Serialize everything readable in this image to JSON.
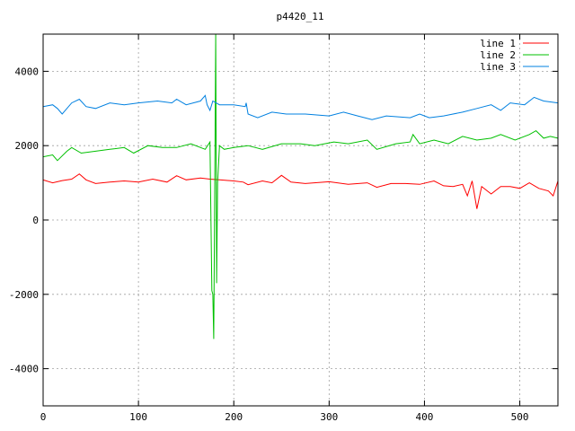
{
  "chart_data": {
    "type": "line",
    "title": "p4420_11",
    "xlabel": "",
    "ylabel": "",
    "xlim": [
      0,
      540
    ],
    "ylim": [
      -5000,
      5000
    ],
    "x_ticks": [
      0,
      100,
      200,
      300,
      400,
      500
    ],
    "y_ticks": [
      -4000,
      -2000,
      0,
      2000,
      4000
    ],
    "grid": true,
    "legend_position": "top-right",
    "series": [
      {
        "name": "line 1",
        "color": "#ff0000",
        "points": [
          [
            0,
            1080
          ],
          [
            10,
            1000
          ],
          [
            20,
            1060
          ],
          [
            30,
            1100
          ],
          [
            38,
            1240
          ],
          [
            45,
            1080
          ],
          [
            55,
            980
          ],
          [
            70,
            1020
          ],
          [
            85,
            1050
          ],
          [
            100,
            1020
          ],
          [
            115,
            1100
          ],
          [
            130,
            1020
          ],
          [
            140,
            1190
          ],
          [
            150,
            1080
          ],
          [
            165,
            1130
          ],
          [
            175,
            1100
          ],
          [
            185,
            1080
          ],
          [
            200,
            1050
          ],
          [
            210,
            1020
          ],
          [
            215,
            950
          ],
          [
            230,
            1050
          ],
          [
            240,
            1000
          ],
          [
            250,
            1200
          ],
          [
            260,
            1020
          ],
          [
            275,
            980
          ],
          [
            300,
            1030
          ],
          [
            320,
            960
          ],
          [
            340,
            1000
          ],
          [
            350,
            880
          ],
          [
            365,
            980
          ],
          [
            380,
            980
          ],
          [
            395,
            960
          ],
          [
            410,
            1050
          ],
          [
            420,
            920
          ],
          [
            430,
            900
          ],
          [
            440,
            960
          ],
          [
            445,
            650
          ],
          [
            450,
            1050
          ],
          [
            455,
            300
          ],
          [
            460,
            900
          ],
          [
            470,
            700
          ],
          [
            480,
            900
          ],
          [
            490,
            900
          ],
          [
            500,
            850
          ],
          [
            510,
            1000
          ],
          [
            520,
            850
          ],
          [
            530,
            780
          ],
          [
            535,
            650
          ],
          [
            540,
            1050
          ]
        ]
      },
      {
        "name": "line 2",
        "color": "#00c000",
        "points": [
          [
            0,
            1700
          ],
          [
            10,
            1750
          ],
          [
            15,
            1600
          ],
          [
            25,
            1850
          ],
          [
            30,
            1950
          ],
          [
            40,
            1800
          ],
          [
            55,
            1850
          ],
          [
            70,
            1900
          ],
          [
            85,
            1950
          ],
          [
            95,
            1800
          ],
          [
            110,
            2000
          ],
          [
            125,
            1950
          ],
          [
            140,
            1950
          ],
          [
            155,
            2050
          ],
          [
            170,
            1900
          ],
          [
            175,
            2100
          ],
          [
            177,
            -1900
          ],
          [
            178,
            -2000
          ],
          [
            179,
            -3200
          ],
          [
            180,
            800
          ],
          [
            181,
            5000
          ],
          [
            182,
            -1700
          ],
          [
            183,
            1000
          ],
          [
            185,
            2000
          ],
          [
            190,
            1900
          ],
          [
            200,
            1950
          ],
          [
            215,
            2000
          ],
          [
            230,
            1900
          ],
          [
            250,
            2050
          ],
          [
            270,
            2050
          ],
          [
            285,
            2000
          ],
          [
            305,
            2100
          ],
          [
            320,
            2050
          ],
          [
            340,
            2150
          ],
          [
            350,
            1900
          ],
          [
            370,
            2050
          ],
          [
            385,
            2100
          ],
          [
            388,
            2300
          ],
          [
            395,
            2050
          ],
          [
            410,
            2150
          ],
          [
            425,
            2050
          ],
          [
            440,
            2250
          ],
          [
            455,
            2150
          ],
          [
            470,
            2200
          ],
          [
            480,
            2300
          ],
          [
            495,
            2150
          ],
          [
            510,
            2300
          ],
          [
            517,
            2400
          ],
          [
            525,
            2200
          ],
          [
            532,
            2250
          ],
          [
            540,
            2200
          ]
        ]
      },
      {
        "name": "line 3",
        "color": "#0080e0",
        "points": [
          [
            0,
            3050
          ],
          [
            10,
            3100
          ],
          [
            15,
            3000
          ],
          [
            20,
            2850
          ],
          [
            30,
            3150
          ],
          [
            38,
            3250
          ],
          [
            45,
            3050
          ],
          [
            55,
            3000
          ],
          [
            70,
            3150
          ],
          [
            85,
            3100
          ],
          [
            100,
            3150
          ],
          [
            120,
            3200
          ],
          [
            135,
            3150
          ],
          [
            140,
            3250
          ],
          [
            150,
            3100
          ],
          [
            165,
            3200
          ],
          [
            170,
            3350
          ],
          [
            172,
            3100
          ],
          [
            175,
            2950
          ],
          [
            178,
            3200
          ],
          [
            185,
            3100
          ],
          [
            200,
            3100
          ],
          [
            212,
            3050
          ],
          [
            213,
            3150
          ],
          [
            215,
            2850
          ],
          [
            225,
            2750
          ],
          [
            240,
            2900
          ],
          [
            255,
            2850
          ],
          [
            275,
            2850
          ],
          [
            300,
            2800
          ],
          [
            315,
            2900
          ],
          [
            330,
            2800
          ],
          [
            345,
            2700
          ],
          [
            360,
            2800
          ],
          [
            385,
            2750
          ],
          [
            395,
            2850
          ],
          [
            405,
            2750
          ],
          [
            420,
            2800
          ],
          [
            440,
            2900
          ],
          [
            455,
            3000
          ],
          [
            470,
            3100
          ],
          [
            480,
            2950
          ],
          [
            490,
            3150
          ],
          [
            505,
            3100
          ],
          [
            515,
            3300
          ],
          [
            525,
            3200
          ],
          [
            540,
            3150
          ]
        ]
      }
    ]
  }
}
